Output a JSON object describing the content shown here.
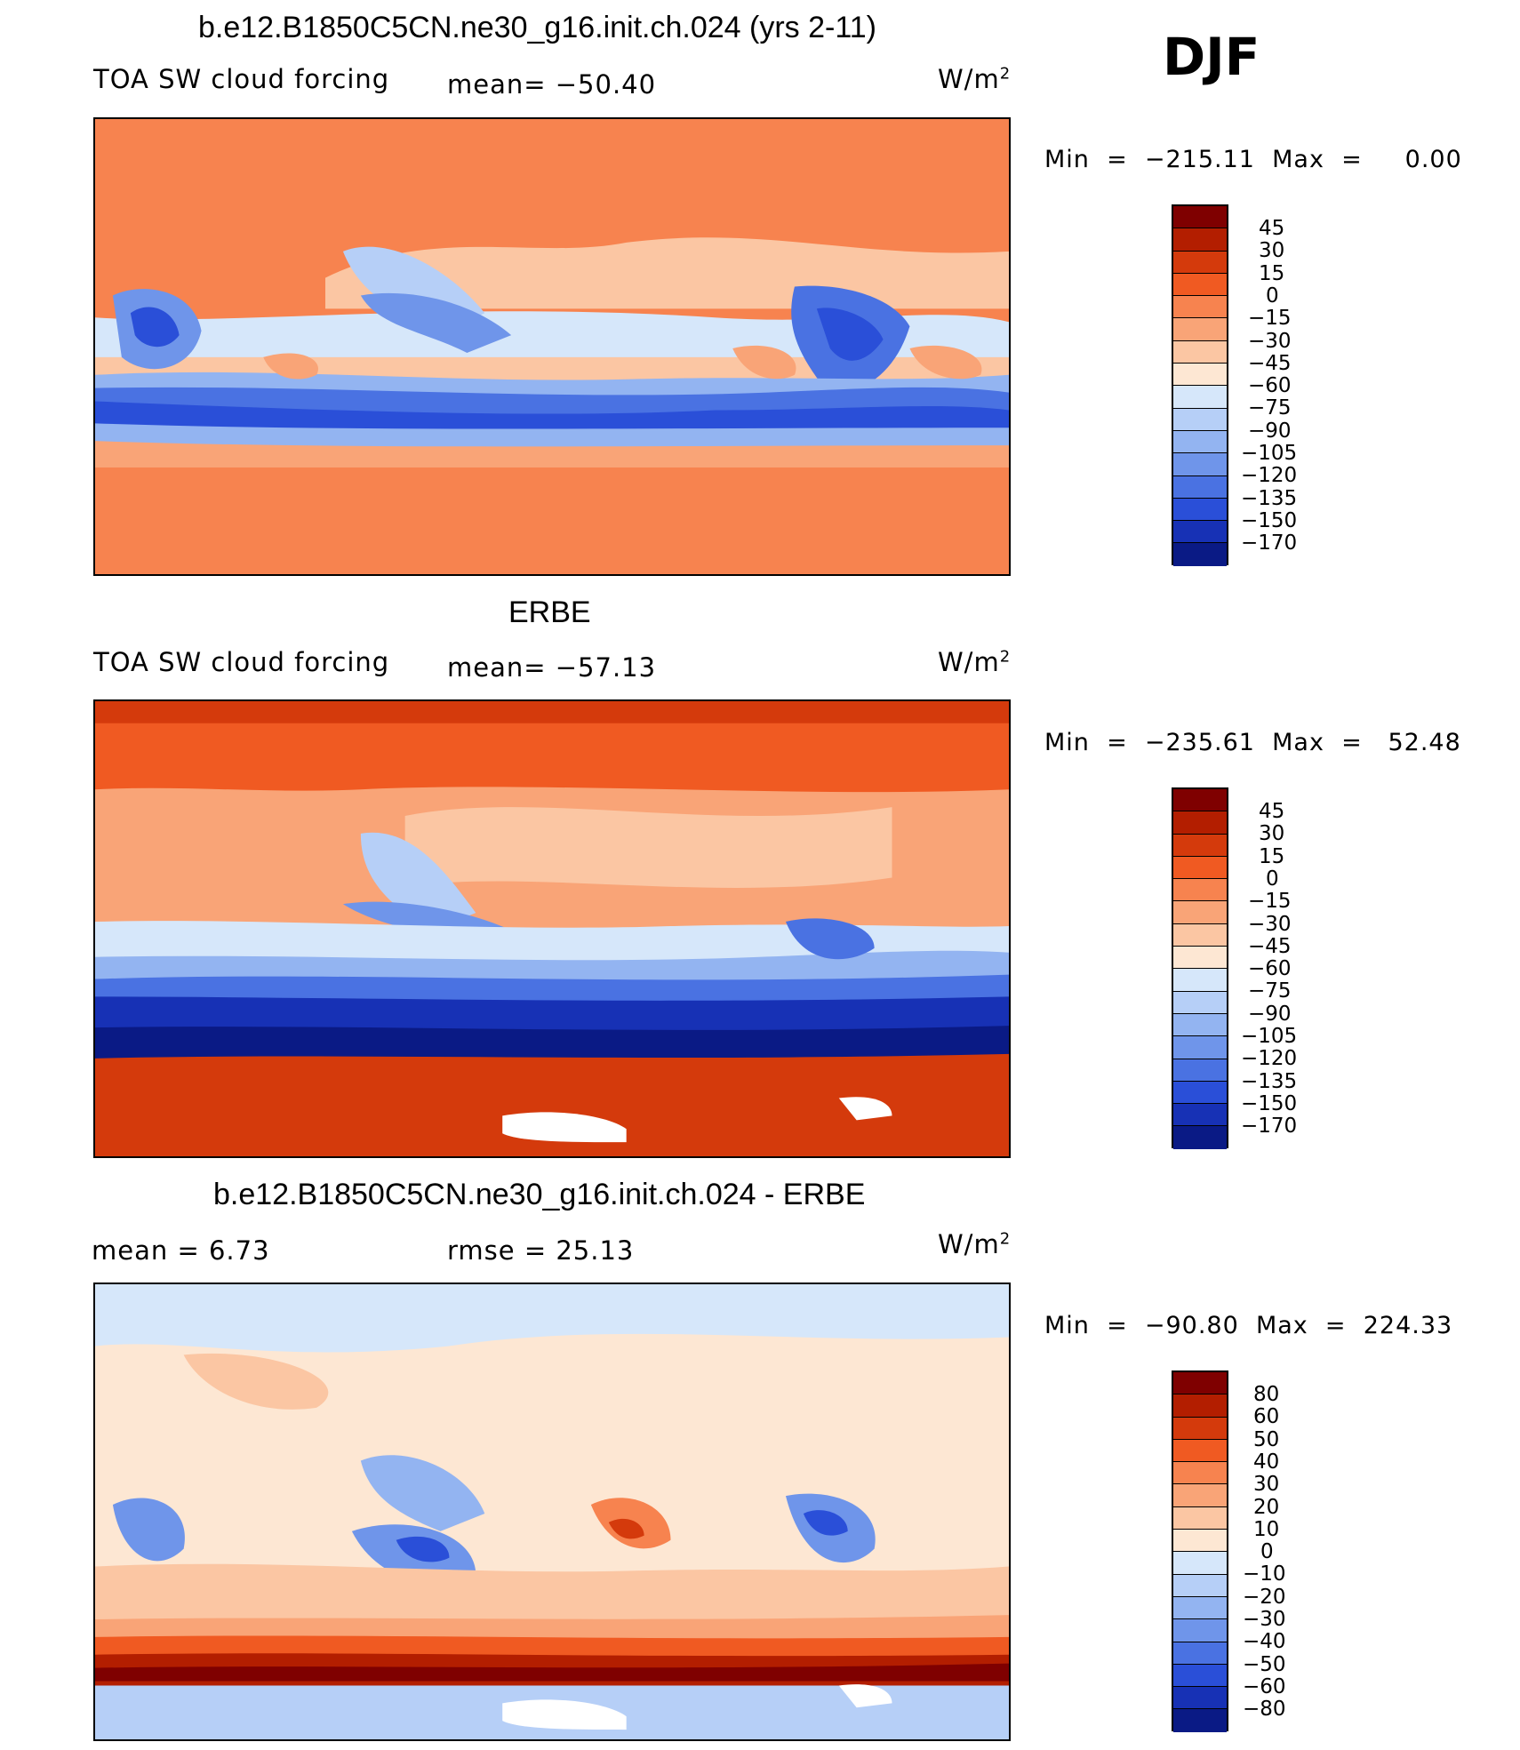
{
  "season": "DJF",
  "units": "W/m2",
  "panels": [
    {
      "id": "model",
      "title": "b.e12.B1850C5CN.ne30_g16.init.ch.024 (yrs 2-11)",
      "left_label": "TOA SW cloud forcing",
      "center_label": "mean= −50.40",
      "units_text": "W/m",
      "units_sup": "2",
      "minmax": "Min  =  −215.11  Max  =     0.00",
      "colorbar_labels": [
        "45",
        "30",
        "15",
        "0",
        "−15",
        "−30",
        "−45",
        "−60",
        "−75",
        "−90",
        "−105",
        "−120",
        "−135",
        "−150",
        "−170"
      ]
    },
    {
      "id": "obs",
      "title": "ERBE",
      "left_label": "TOA SW cloud forcing",
      "center_label": "mean= −57.13",
      "units_text": "W/m",
      "units_sup": "2",
      "minmax": "Min  =  −235.61  Max  =   52.48",
      "colorbar_labels": [
        "45",
        "30",
        "15",
        "0",
        "−15",
        "−30",
        "−45",
        "−60",
        "−75",
        "−90",
        "−105",
        "−120",
        "−135",
        "−150",
        "−170"
      ]
    },
    {
      "id": "diff",
      "title": "b.e12.B1850C5CN.ne30_g16.init.ch.024 - ERBE",
      "left_label": "mean  =     6.73",
      "center_label": "rmse  =   25.13",
      "units_text": "W/m",
      "units_sup": "2",
      "minmax": "Min  =  −90.80  Max  =  224.33",
      "colorbar_labels": [
        "80",
        "60",
        "50",
        "40",
        "30",
        "20",
        "10",
        "0",
        "−10",
        "−20",
        "−30",
        "−40",
        "−50",
        "−60",
        "−80"
      ]
    }
  ],
  "colors": {
    "scale16": [
      "#7f0000",
      "#b31e00",
      "#d43a0c",
      "#f05a22",
      "#f7834f",
      "#f9a477",
      "#fbc6a3",
      "#fde7d3",
      "#d6e7fa",
      "#b6cff7",
      "#93b4f1",
      "#6f95ea",
      "#4a72e2",
      "#2a4fd8",
      "#1731b5",
      "#0a1a85"
    ]
  }
}
